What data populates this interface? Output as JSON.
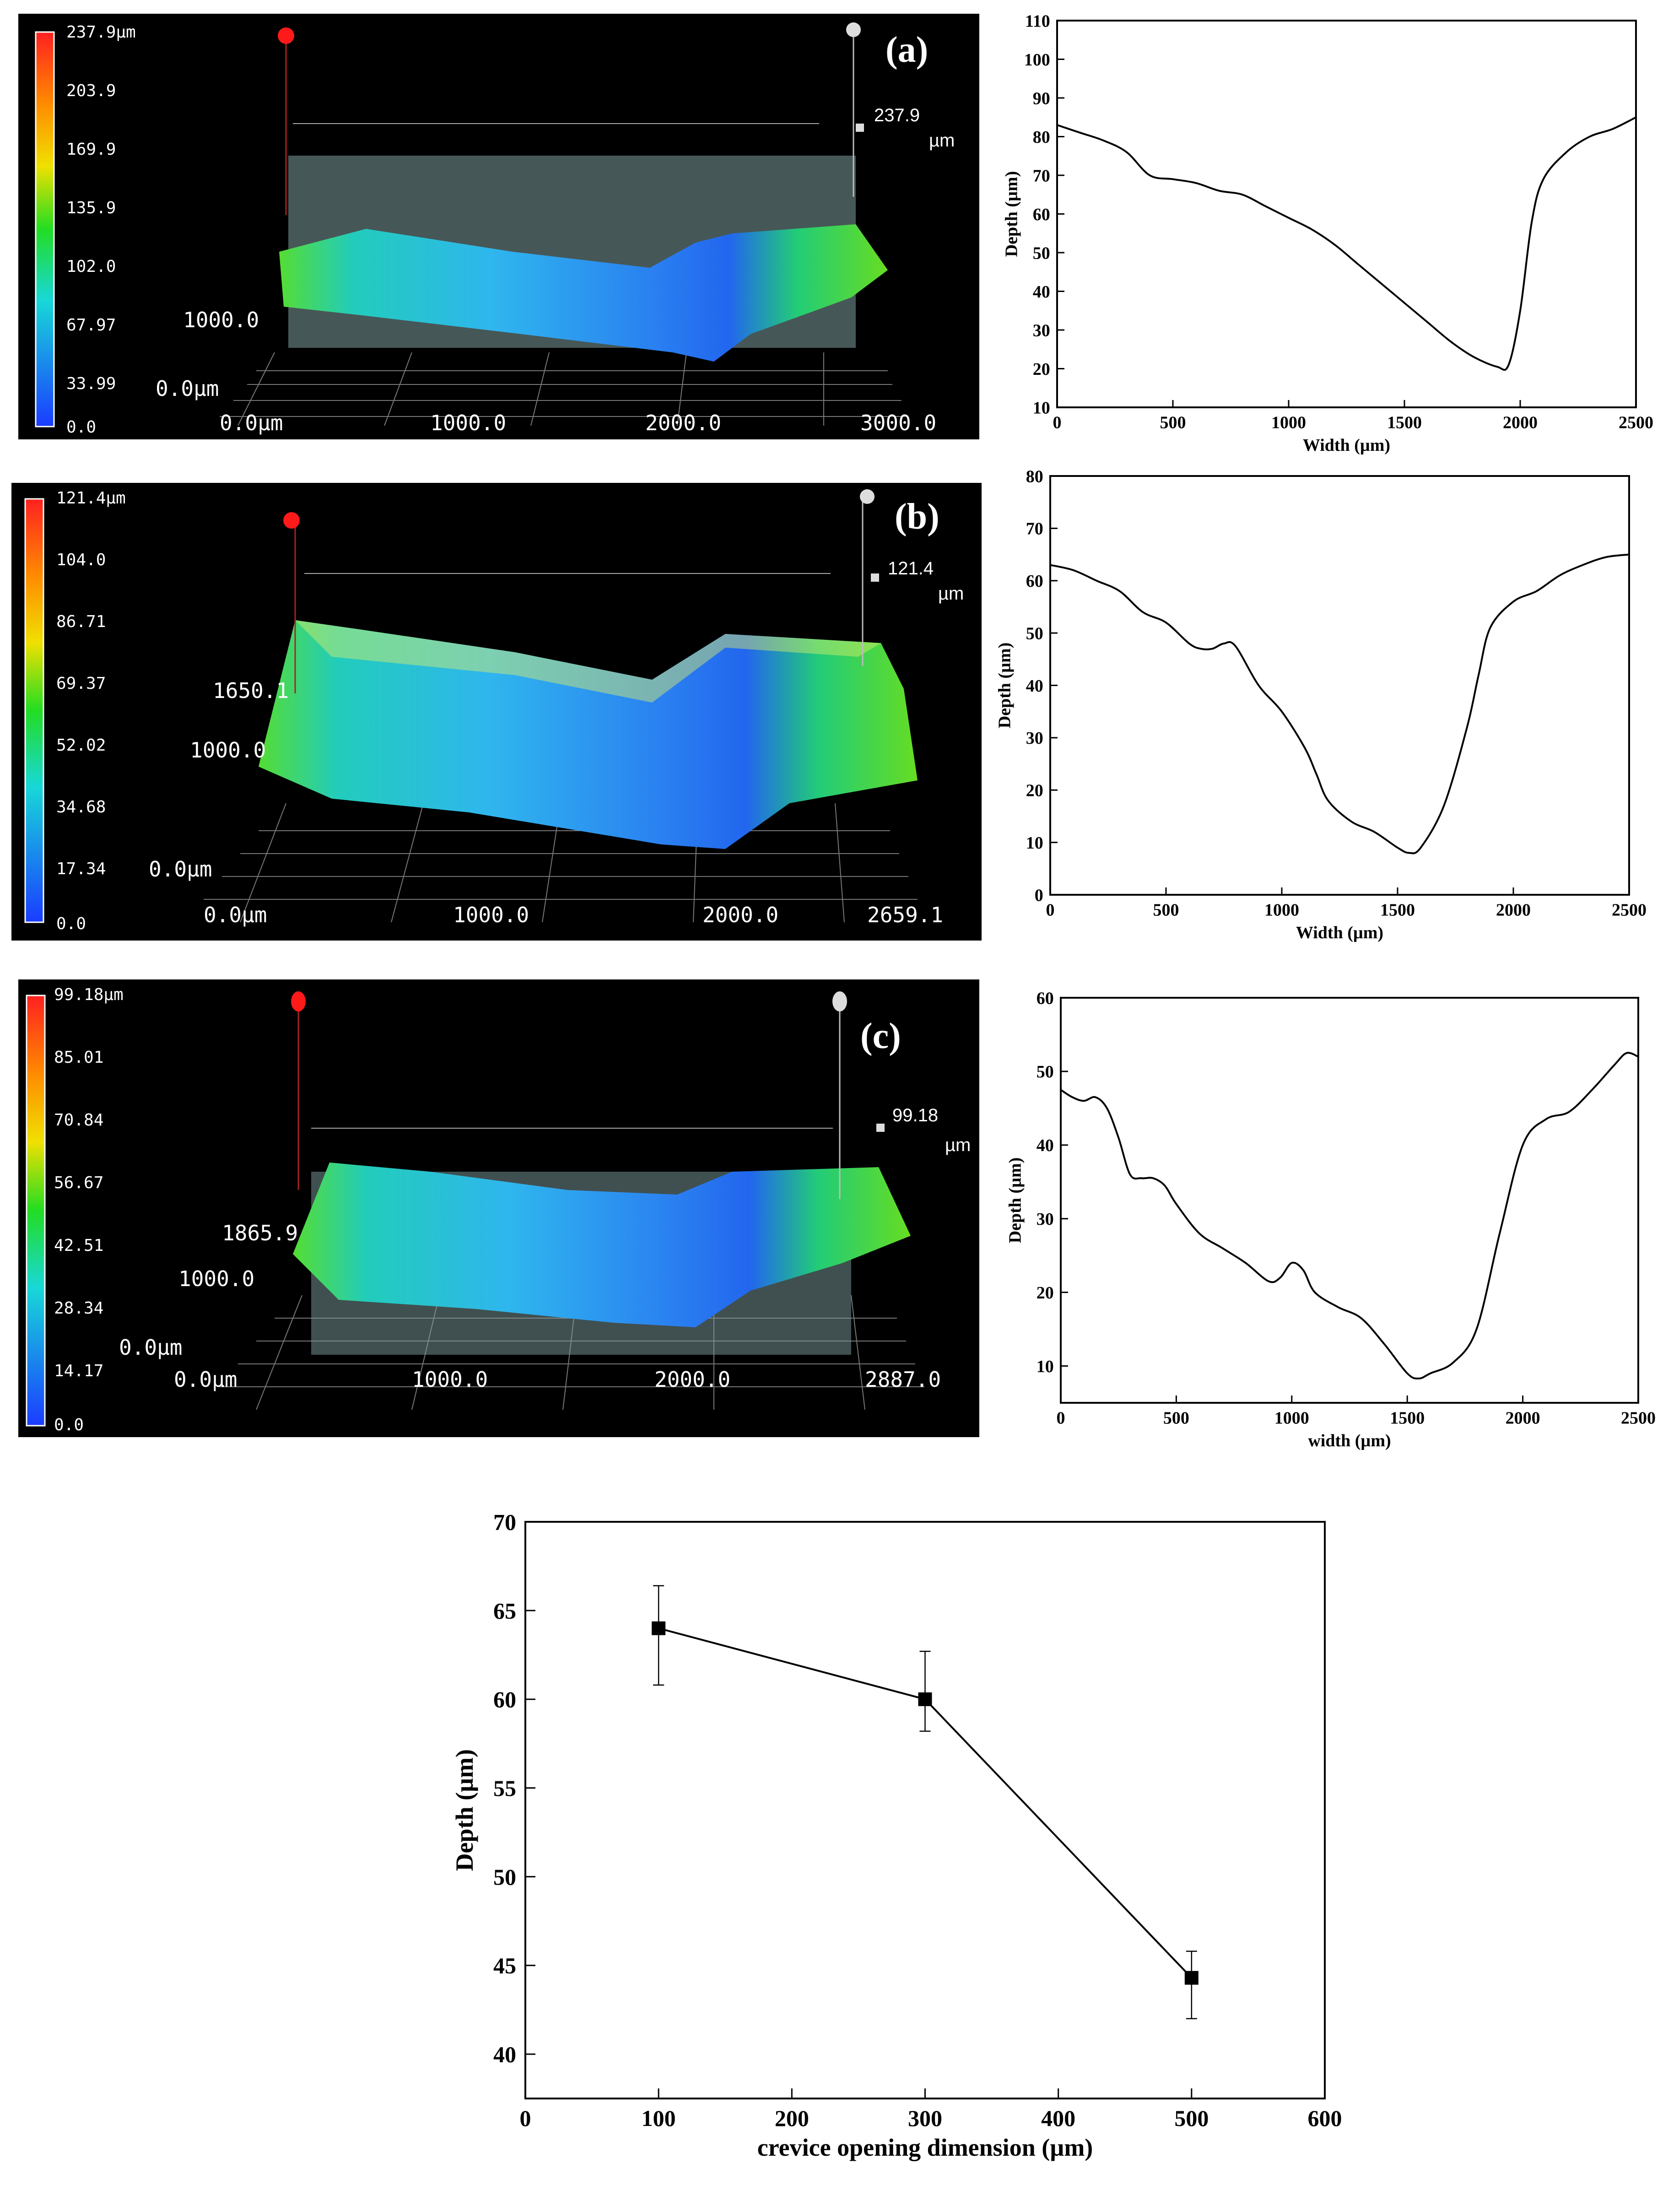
{
  "colors": {
    "background": "#000000",
    "line": "#000000",
    "colorbar_top": "#ff2020",
    "colorbar_bottom": "#1a3cff"
  },
  "panels": [
    {
      "label": "(a)",
      "colorbar_ticks": [
        "237.9µm",
        "203.9",
        "169.9",
        "135.9",
        "102.0",
        "67.97",
        "33.99",
        "0.0"
      ],
      "height_label": "237.9",
      "height_unit": "µm",
      "y_axis_labels": [
        "1000.0",
        "0.0µm"
      ],
      "x_axis_labels": [
        "0.0µm",
        "1000.0",
        "2000.0",
        "3000.0"
      ]
    },
    {
      "label": "(b)",
      "colorbar_ticks": [
        "121.4µm",
        "104.0",
        "86.71",
        "69.37",
        "52.02",
        "34.68",
        "17.34",
        "0.0"
      ],
      "height_label": "121.4",
      "height_unit": "µm",
      "y_axis_labels": [
        "1650.1",
        "1000.0",
        "0.0µm"
      ],
      "x_axis_labels": [
        "0.0µm",
        "1000.0",
        "2000.0",
        "2659.1"
      ]
    },
    {
      "label": "(c)",
      "colorbar_ticks": [
        "99.18µm",
        "85.01",
        "70.84",
        "56.67",
        "42.51",
        "28.34",
        "14.17",
        "0.0"
      ],
      "height_label": "99.18",
      "height_unit": "µm",
      "y_axis_labels": [
        "1865.9",
        "1000.0",
        "0.0µm"
      ],
      "x_axis_labels": [
        "0.0µm",
        "1000.0",
        "2000.0",
        "2887.0"
      ]
    }
  ],
  "chart_data": [
    {
      "type": "line",
      "panel": "a",
      "xlabel": "Width (µm)",
      "ylabel": "Depth (µm)",
      "xlim": [
        0,
        2500
      ],
      "ylim": [
        10,
        110
      ],
      "xticks": [
        0,
        500,
        1000,
        1500,
        2000,
        2500
      ],
      "yticks": [
        10,
        20,
        30,
        40,
        50,
        60,
        70,
        80,
        90,
        100,
        110
      ],
      "x": [
        0,
        100,
        200,
        300,
        400,
        500,
        600,
        700,
        800,
        900,
        1000,
        1100,
        1200,
        1300,
        1400,
        1500,
        1600,
        1700,
        1800,
        1900,
        1950,
        2000,
        2050,
        2100,
        2200,
        2300,
        2400,
        2500
      ],
      "y": [
        83,
        81,
        79,
        76,
        70,
        69,
        68,
        66,
        65,
        62,
        59,
        56,
        52,
        47,
        42,
        37,
        32,
        27,
        23,
        20.5,
        21,
        35,
        58,
        69,
        76,
        80,
        82,
        85
      ]
    },
    {
      "type": "line",
      "panel": "b",
      "xlabel": "Width (µm)",
      "ylabel": "Depth (µm)",
      "xlim": [
        0,
        2500
      ],
      "ylim": [
        0,
        80
      ],
      "xticks": [
        0,
        500,
        1000,
        1500,
        2000,
        2500
      ],
      "yticks": [
        0,
        10,
        20,
        30,
        40,
        50,
        60,
        70,
        80
      ],
      "x": [
        0,
        100,
        200,
        300,
        400,
        500,
        600,
        650,
        700,
        750,
        800,
        900,
        1000,
        1100,
        1150,
        1200,
        1300,
        1400,
        1500,
        1550,
        1600,
        1700,
        1800,
        1850,
        1900,
        2000,
        2100,
        2200,
        2300,
        2400,
        2500
      ],
      "y": [
        63,
        62,
        60,
        58,
        54,
        52,
        48,
        47,
        47,
        48,
        47.5,
        40,
        35,
        28,
        23,
        18,
        14,
        12,
        9,
        8,
        9,
        17,
        32,
        42,
        51,
        56,
        58,
        61,
        63,
        64.5,
        65
      ]
    },
    {
      "type": "line",
      "panel": "c",
      "xlabel": "width (µm)",
      "ylabel": "Depth (µm)",
      "xlim": [
        0,
        2500
      ],
      "ylim": [
        5,
        60
      ],
      "xticks": [
        0,
        500,
        1000,
        1500,
        2000,
        2500
      ],
      "yticks": [
        10,
        20,
        30,
        40,
        50,
        60
      ],
      "x": [
        0,
        50,
        100,
        150,
        200,
        250,
        300,
        350,
        400,
        450,
        500,
        600,
        700,
        800,
        900,
        950,
        1000,
        1050,
        1100,
        1200,
        1300,
        1400,
        1500,
        1550,
        1600,
        1700,
        1800,
        1900,
        2000,
        2100,
        2200,
        2300,
        2400,
        2450,
        2500
      ],
      "y": [
        47.5,
        46.5,
        46,
        46.5,
        45,
        41,
        36,
        35.5,
        35.5,
        34.5,
        32,
        28,
        26,
        24,
        21.5,
        22,
        24,
        23,
        20,
        18,
        16.5,
        13,
        9,
        8.3,
        9,
        10.5,
        15,
        28,
        40,
        43.5,
        44.5,
        47.5,
        51,
        52.5,
        52
      ]
    },
    {
      "type": "scatter",
      "panel": "summary",
      "xlabel": "crevice opening dimension (µm)",
      "ylabel": "Depth (µm)",
      "xlim": [
        0,
        600
      ],
      "ylim": [
        37.5,
        70
      ],
      "xticks": [
        0,
        100,
        200,
        300,
        400,
        500,
        600
      ],
      "yticks": [
        40,
        45,
        50,
        55,
        60,
        65,
        70
      ],
      "x": [
        100,
        300,
        500
      ],
      "y": [
        64,
        60,
        44.3
      ],
      "err_low": [
        60.8,
        58.2,
        42
      ],
      "err_high": [
        66.4,
        62.7,
        45.8
      ],
      "connected": true,
      "marker": "square"
    }
  ]
}
